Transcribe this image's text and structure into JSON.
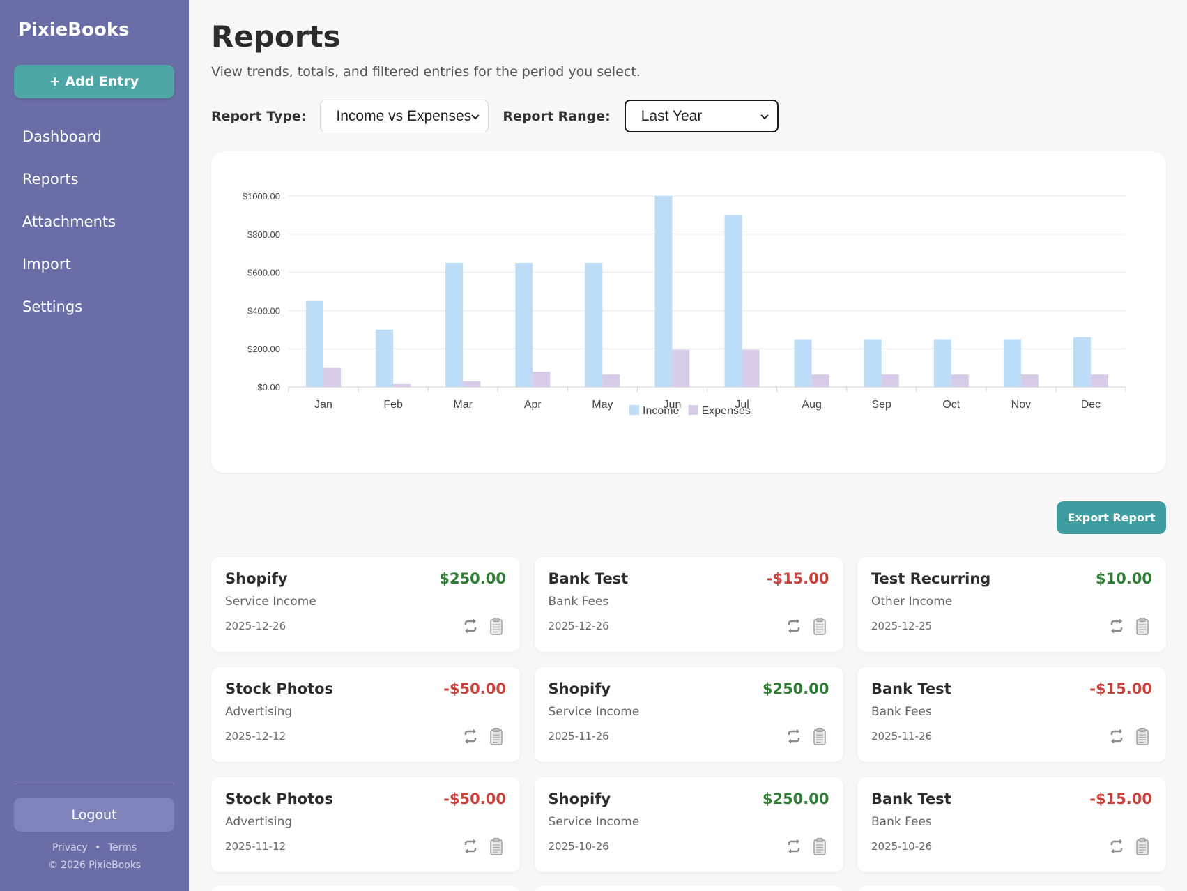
{
  "sidebar": {
    "brand": "PixieBooks",
    "add_entry_label": "+ Add Entry",
    "nav": [
      "Dashboard",
      "Reports",
      "Attachments",
      "Import",
      "Settings"
    ],
    "logout_label": "Logout",
    "footer_privacy": "Privacy",
    "footer_separator": "•",
    "footer_terms": "Terms",
    "copyright": "© 2026 PixieBooks"
  },
  "page": {
    "title": "Reports",
    "subtitle": "View trends, totals, and filtered entries for the period you select."
  },
  "controls": {
    "report_type_label": "Report Type:",
    "report_type_value": "Income vs Expenses",
    "report_range_label": "Report Range:",
    "report_range_value": "Last Year"
  },
  "chart_data": {
    "type": "bar",
    "categories": [
      "Jan",
      "Feb",
      "Mar",
      "Apr",
      "May",
      "Jun",
      "Jul",
      "Aug",
      "Sep",
      "Oct",
      "Nov",
      "Dec"
    ],
    "series": [
      {
        "name": "Income",
        "color": "#bcdcf8",
        "values": [
          450,
          300,
          650,
          650,
          650,
          1000,
          900,
          250,
          250,
          250,
          250,
          260
        ]
      },
      {
        "name": "Expenses",
        "color": "#d8cbe7",
        "values": [
          100,
          15,
          30,
          80,
          65,
          195,
          195,
          65,
          65,
          65,
          65,
          65
        ]
      }
    ],
    "ylim": [
      0,
      1000
    ],
    "yticks": [
      "$0.00",
      "$200.00",
      "$400.00",
      "$600.00",
      "$800.00",
      "$1000.00"
    ],
    "grid": true,
    "legend": "bottom-center"
  },
  "export_label": "Export Report",
  "colors": {
    "positive": "#2e7d32",
    "negative": "#c9413b"
  },
  "entries": [
    {
      "name": "Shopify",
      "category": "Service Income",
      "date": "2025-12-26",
      "amount": "$250.00",
      "type": "positive"
    },
    {
      "name": "Bank Test",
      "category": "Bank Fees",
      "date": "2025-12-26",
      "amount": "-$15.00",
      "type": "negative"
    },
    {
      "name": "Test Recurring",
      "category": "Other Income",
      "date": "2025-12-25",
      "amount": "$10.00",
      "type": "positive"
    },
    {
      "name": "Stock Photos",
      "category": "Advertising",
      "date": "2025-12-12",
      "amount": "-$50.00",
      "type": "negative"
    },
    {
      "name": "Shopify",
      "category": "Service Income",
      "date": "2025-11-26",
      "amount": "$250.00",
      "type": "positive"
    },
    {
      "name": "Bank Test",
      "category": "Bank Fees",
      "date": "2025-11-26",
      "amount": "-$15.00",
      "type": "negative"
    },
    {
      "name": "Stock Photos",
      "category": "Advertising",
      "date": "2025-11-12",
      "amount": "-$50.00",
      "type": "negative"
    },
    {
      "name": "Shopify",
      "category": "Service Income",
      "date": "2025-10-26",
      "amount": "$250.00",
      "type": "positive"
    },
    {
      "name": "Bank Test",
      "category": "Bank Fees",
      "date": "2025-10-26",
      "amount": "-$15.00",
      "type": "negative"
    }
  ],
  "entry_icons": [
    "recurring-icon",
    "attachment-icon"
  ]
}
